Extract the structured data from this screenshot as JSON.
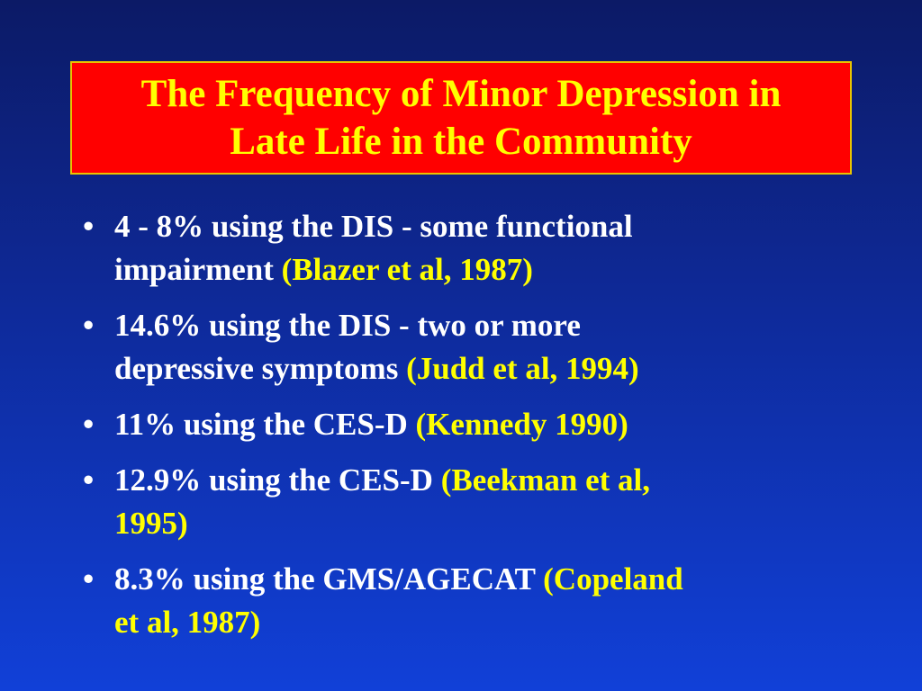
{
  "slide": {
    "title_lines": [
      "The Frequency of Minor Depression in",
      "Late Life in the Community"
    ],
    "colors": {
      "background_top": "#0c1a66",
      "background_bottom": "#1140d8",
      "title_box": "#ff0000",
      "title_text": "#ffff00",
      "body_text": "#ffffff",
      "citation_text": "#ffff00"
    },
    "bullet_symbol": "•",
    "bullets": [
      {
        "line1_text": "4 - 8% using the DIS - some functional",
        "line2_text": "impairment ",
        "citation": "(Blazer et al, 1987)"
      },
      {
        "line1_text": "14.6% using the DIS - two or more",
        "line2_text": "depressive symptoms ",
        "citation": "(Judd et al, 1994)"
      },
      {
        "line1_text": "11% using the CES-D ",
        "citation": "(Kennedy 1990)"
      },
      {
        "line1_text": "12.9% using the CES-D ",
        "citation_line1": "(Beekman et al,",
        "citation_line2": "1995)"
      },
      {
        "line1_text": "8.3% using the GMS/AGECAT ",
        "citation_line1": "(Copeland",
        "citation_line2": "et al, 1987)"
      }
    ]
  }
}
